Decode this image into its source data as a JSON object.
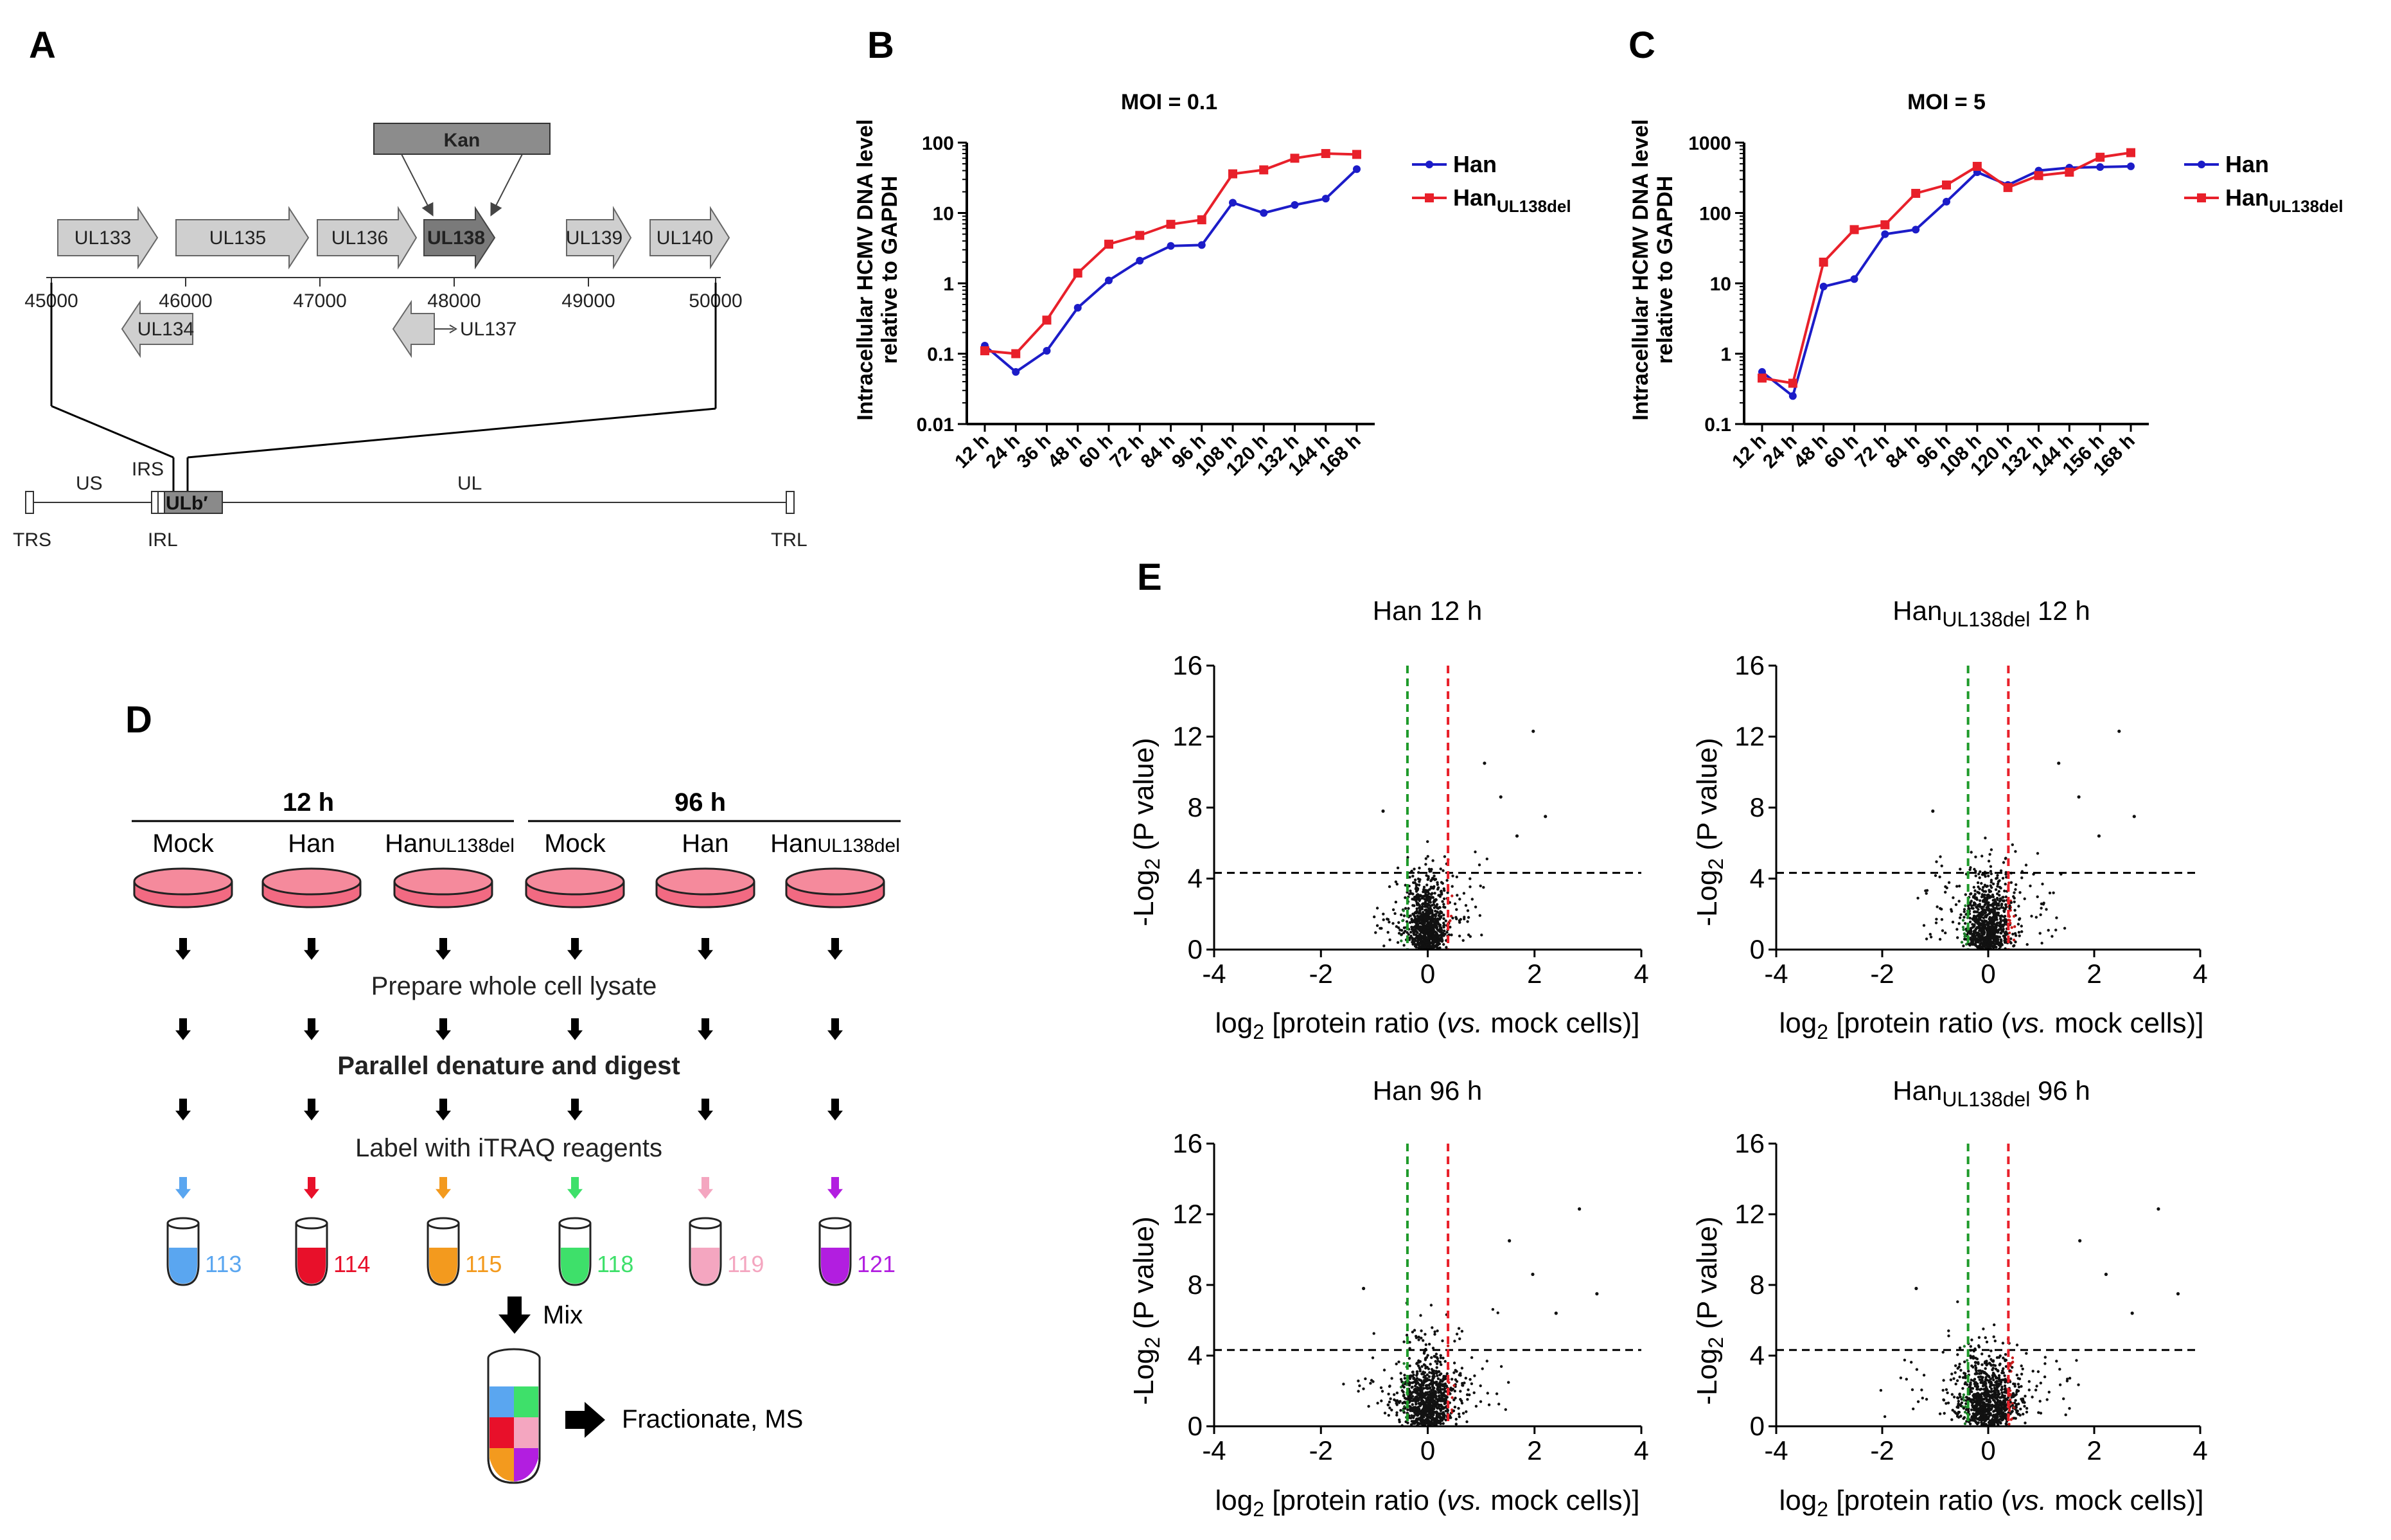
{
  "panels": {
    "a": "A",
    "b": "B",
    "c": "C",
    "d": "D",
    "e": "E"
  },
  "panel_a": {
    "kan": "Kan",
    "genes_forward": [
      "UL133",
      "UL135",
      "UL136",
      "UL138",
      "UL139",
      "UL140"
    ],
    "genes_reverse": [
      "UL134",
      "UL137"
    ],
    "coordinates": [
      "45000",
      "46000",
      "47000",
      "48000",
      "49000",
      "50000"
    ],
    "genome_labels": {
      "us": "US",
      "ul": "UL",
      "irs": "IRS",
      "irl": "IRL",
      "trs": "TRS",
      "trl": "TRL",
      "ulb": "ULb′"
    },
    "colors": {
      "gene_fill": "#cfcfcf",
      "ul138_fill": "#7a7a7a",
      "kan_fill": "#8c8c8c"
    }
  },
  "chart_data": [
    {
      "id": "B",
      "type": "line",
      "title": "MOI = 0.1",
      "ylabel_line1": "Intracellular HCMV DNA level",
      "ylabel_line2": "relative to GAPDH",
      "yscale": "log",
      "ylim": [
        0.01,
        100
      ],
      "ytick_labels": [
        "0.01",
        "0.1",
        "1",
        "10",
        "100"
      ],
      "categories": [
        "12 h",
        "24 h",
        "36 h",
        "48 h",
        "60 h",
        "72 h",
        "84 h",
        "96 h",
        "108 h",
        "120 h",
        "132 h",
        "144 h",
        "168 h"
      ],
      "series": [
        {
          "name": "Han",
          "color": "#1c1cc8",
          "values": [
            0.13,
            0.055,
            0.11,
            0.45,
            1.1,
            2.1,
            3.4,
            3.5,
            14,
            10,
            13,
            16,
            42
          ]
        },
        {
          "name": "Han",
          "subscript": "UL138del",
          "color": "#e8202a",
          "values": [
            0.11,
            0.1,
            0.3,
            1.4,
            3.6,
            4.8,
            6.9,
            8.0,
            36,
            41,
            60,
            70,
            68
          ]
        }
      ]
    },
    {
      "id": "C",
      "type": "line",
      "title": "MOI = 5",
      "ylabel_line1": "Intracellular HCMV DNA level",
      "ylabel_line2": "relative to GAPDH",
      "yscale": "log",
      "ylim": [
        0.1,
        1000
      ],
      "ytick_labels": [
        "0.1",
        "1",
        "10",
        "100",
        "1000"
      ],
      "categories": [
        "12 h",
        "24 h",
        "48 h",
        "60 h",
        "72 h",
        "84 h",
        "96 h",
        "108 h",
        "120 h",
        "132 h",
        "144 h",
        "156 h",
        "168 h"
      ],
      "series": [
        {
          "name": "Han",
          "color": "#1c1cc8",
          "values": [
            0.55,
            0.25,
            9,
            11.5,
            50,
            58,
            145,
            380,
            250,
            400,
            440,
            450,
            460
          ]
        },
        {
          "name": "Han",
          "subscript": "UL138del",
          "color": "#e8202a",
          "values": [
            0.45,
            0.38,
            20,
            58,
            68,
            190,
            250,
            460,
            230,
            340,
            380,
            620,
            720
          ]
        }
      ]
    },
    {
      "id": "E1",
      "type": "scatter",
      "title": "Han 12 h",
      "xlabel": "log2 [protein ratio (vs. mock cells)]",
      "ylabel": "-Log2 (P value)",
      "xlim": [
        -4,
        4
      ],
      "ylim": [
        0,
        16
      ],
      "xticks": [
        -4,
        -2,
        0,
        2,
        4
      ],
      "yticks": [
        0,
        4,
        8,
        12,
        16
      ],
      "threshold_y": 4.32,
      "threshold_x": [
        -0.38,
        0.38
      ],
      "spread": 0.8
    },
    {
      "id": "E2",
      "type": "scatter",
      "title": "Han",
      "title_sub": "UL138del",
      "title_tail": " 12 h",
      "xlabel": "log2 [protein ratio (vs. mock cells)]",
      "ylabel": "-Log2 (P value)",
      "xlim": [
        -4,
        4
      ],
      "ylim": [
        0,
        16
      ],
      "xticks": [
        -4,
        -2,
        0,
        2,
        4
      ],
      "yticks": [
        0,
        4,
        8,
        12,
        16
      ],
      "threshold_y": 4.32,
      "threshold_x": [
        -0.38,
        0.38
      ],
      "spread": 1.0
    },
    {
      "id": "E3",
      "type": "scatter",
      "title": "Han 96 h",
      "xlabel": "log2 [protein ratio (vs. mock cells)]",
      "ylabel": "-Log2 (P value)",
      "xlim": [
        -4,
        4
      ],
      "ylim": [
        0,
        16
      ],
      "xticks": [
        -4,
        -2,
        0,
        2,
        4
      ],
      "yticks": [
        0,
        4,
        8,
        12,
        16
      ],
      "threshold_y": 4.32,
      "threshold_x": [
        -0.38,
        0.38
      ],
      "spread": 1.15
    },
    {
      "id": "E4",
      "type": "scatter",
      "title": "Han",
      "title_sub": "UL138del",
      "title_tail": " 96 h",
      "xlabel": "log2 [protein ratio (vs. mock cells)]",
      "ylabel": "-Log2 (P value)",
      "xlim": [
        -4,
        4
      ],
      "ylim": [
        0,
        16
      ],
      "xticks": [
        -4,
        -2,
        0,
        2,
        4
      ],
      "yticks": [
        0,
        4,
        8,
        12,
        16
      ],
      "threshold_y": 4.32,
      "threshold_x": [
        -0.38,
        0.38
      ],
      "spread": 1.3
    }
  ],
  "panel_d": {
    "time_12": "12 h",
    "time_96": "96 h",
    "samples": [
      "Mock",
      "Han",
      "Han",
      "Mock",
      "Han",
      "Han"
    ],
    "sample_subs": [
      "",
      "",
      "UL138del",
      "",
      "",
      "UL138del"
    ],
    "step1": "Prepare whole cell lysate",
    "step2": "Parallel denature and digest",
    "step3": "Label with iTRAQ reagents",
    "tags": [
      "113",
      "114",
      "115",
      "118",
      "119",
      "121"
    ],
    "tag_colors": [
      "#5aa6f0",
      "#e8102a",
      "#f39a1e",
      "#3ee06a",
      "#f4a6c0",
      "#b21ee0"
    ],
    "dish_color": "#f26a82",
    "mix": "Mix",
    "final": "Fractionate, MS"
  }
}
